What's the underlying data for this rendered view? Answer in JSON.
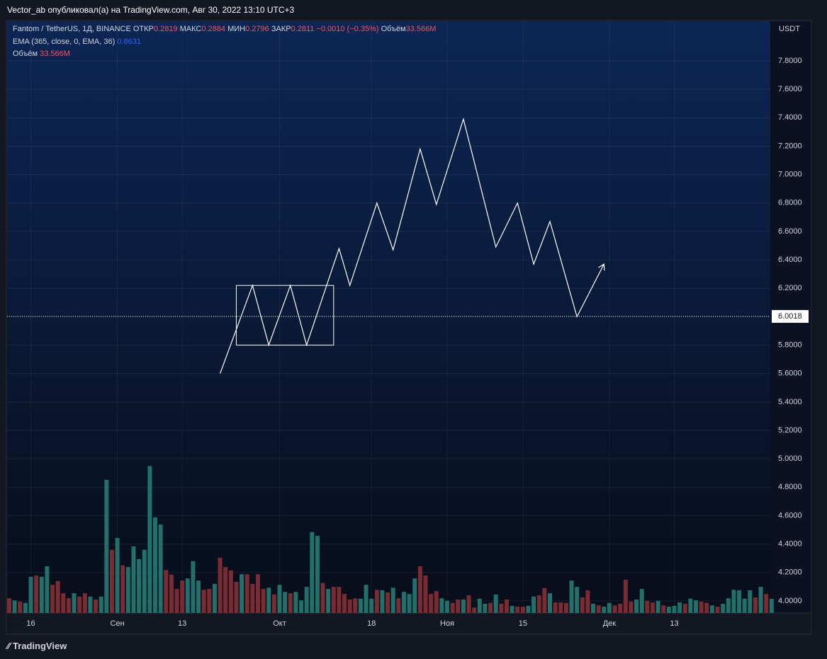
{
  "header": {
    "published": "Vector_ab опубликовал(а) на TradingView.com, Авг 30, 2022 13:10 UTC+3"
  },
  "legend": {
    "symbol": "Fantom / TetherUS, 1Д, BINANCE",
    "open_label": "ОТКР",
    "open": "0.2819",
    "high_label": "МАКС",
    "high": "0.2884",
    "low_label": "МИН",
    "low": "0.2796",
    "close_label": "ЗАКР",
    "close": "0.2811",
    "change": "−0.0010 (−0.35%)",
    "volume_label": "Объём",
    "volume": "33.566M",
    "ema_label": "EMA (365, close, 0, EMA, 36)",
    "ema": "0.8631",
    "volume_study": "Объём",
    "volume_study_value": "33.566M"
  },
  "footer": {
    "brand": "TradingView"
  },
  "chart_data": {
    "type": "bar",
    "currency": "USDT",
    "ylim": [
      3.915,
      8.079
    ],
    "yticks": [
      {
        "value": 4.0,
        "label": "4.0000"
      },
      {
        "value": 4.2,
        "label": "4.2000"
      },
      {
        "value": 4.4,
        "label": "4.4000"
      },
      {
        "value": 4.6,
        "label": "4.6000"
      },
      {
        "value": 4.8,
        "label": "4.8000"
      },
      {
        "value": 5.0,
        "label": "5.0000"
      },
      {
        "value": 5.2,
        "label": "5.2000"
      },
      {
        "value": 5.4,
        "label": "5.4000"
      },
      {
        "value": 5.6,
        "label": "5.6000"
      },
      {
        "value": 5.8,
        "label": "5.8000"
      },
      {
        "value": 6.0,
        "label": "6.0000"
      },
      {
        "value": 6.2,
        "label": "6.2000"
      },
      {
        "value": 6.4,
        "label": "6.4000"
      },
      {
        "value": 6.6,
        "label": "6.6000"
      },
      {
        "value": 6.8,
        "label": "6.8000"
      },
      {
        "value": 7.0,
        "label": "7.0000"
      },
      {
        "value": 7.2,
        "label": "7.2000"
      },
      {
        "value": 7.4,
        "label": "7.4000"
      },
      {
        "value": 7.6,
        "label": "7.6000"
      },
      {
        "value": 7.8,
        "label": "7.8000"
      }
    ],
    "grid": true,
    "categories": [
      null,
      null,
      null,
      null,
      "16",
      null,
      null,
      null,
      null,
      null,
      null,
      null,
      null,
      null,
      null,
      null,
      null,
      null,
      null,
      null,
      "Сен",
      null,
      null,
      null,
      null,
      null,
      null,
      null,
      null,
      null,
      null,
      null,
      "13",
      null,
      null,
      null,
      null,
      null,
      null,
      null,
      null,
      null,
      null,
      null,
      null,
      null,
      null,
      null,
      null,
      null,
      "Окт",
      null,
      null,
      null,
      null,
      null,
      null,
      null,
      null,
      null,
      null,
      null,
      null,
      null,
      null,
      null,
      null,
      "18",
      null,
      null,
      null,
      null,
      null,
      null,
      null,
      null,
      null,
      null,
      null,
      null,
      null,
      "Ноя",
      null,
      null,
      null,
      null,
      null,
      null,
      null,
      null,
      null,
      null,
      null,
      null,
      null,
      "15",
      null,
      null,
      null,
      null,
      null,
      null,
      null,
      null,
      null,
      null,
      null,
      null,
      null,
      null,
      null,
      "Дек",
      null,
      null,
      null,
      null,
      null,
      null,
      null,
      null,
      null,
      null,
      null,
      "13",
      null,
      null,
      null,
      null,
      null,
      null,
      null,
      null,
      null,
      null,
      null,
      null,
      null,
      null,
      null,
      null,
      null,
      null
    ],
    "volume": {
      "name": "Объём",
      "ylim": [
        0,
        500
      ],
      "values": [
        35,
        30,
        27,
        24,
        86,
        89,
        86,
        111,
        67,
        76,
        47,
        35,
        47,
        39,
        47,
        39,
        32,
        39,
        316,
        150,
        178,
        113,
        109,
        158,
        128,
        150,
        349,
        227,
        210,
        102,
        91,
        57,
        77,
        82,
        123,
        77,
        55,
        57,
        69,
        131,
        109,
        101,
        74,
        92,
        92,
        69,
        92,
        57,
        60,
        44,
        67,
        50,
        47,
        50,
        30,
        62,
        192,
        183,
        71,
        57,
        62,
        62,
        45,
        32,
        35,
        34,
        67,
        34,
        55,
        54,
        49,
        60,
        35,
        50,
        45,
        82,
        111,
        89,
        45,
        52,
        35,
        29,
        24,
        32,
        32,
        42,
        13,
        34,
        22,
        24,
        44,
        22,
        32,
        17,
        15,
        15,
        17,
        39,
        42,
        59,
        47,
        25,
        25,
        24,
        77,
        62,
        37,
        54,
        22,
        18,
        15,
        24,
        18,
        22,
        79,
        27,
        32,
        57,
        29,
        25,
        29,
        18,
        15,
        17,
        25,
        22,
        34,
        30,
        27,
        24,
        18,
        15,
        22,
        35,
        55,
        54,
        34,
        54,
        37,
        62,
        45,
        33.566
      ],
      "colors": [
        "#7b2c33",
        "#22706c",
        "#7b2c33",
        "#22706c",
        "#22706c",
        "#7b2c33",
        "#22706c",
        "#22706c",
        "#7b2c33",
        "#7b2c33",
        "#7b2c33",
        "#7b2c33",
        "#22706c",
        "#7b2c33",
        "#7b2c33",
        "#22706c",
        "#7b2c33",
        "#22706c",
        "#22706c",
        "#7b2c33",
        "#22706c",
        "#7b2c33",
        "#22706c",
        "#22706c",
        "#22706c",
        "#22706c",
        "#22706c",
        "#22706c",
        "#22706c",
        "#7b2c33",
        "#7b2c33",
        "#7b2c33",
        "#7b2c33",
        "#22706c",
        "#22706c",
        "#22706c",
        "#7b2c33",
        "#7b2c33",
        "#22706c",
        "#7b2c33",
        "#7b2c33",
        "#7b2c33",
        "#7b2c33",
        "#22706c",
        "#7b2c33",
        "#7b2c33",
        "#7b2c33",
        "#7b2c33",
        "#22706c",
        "#7b2c33",
        "#22706c",
        "#22706c",
        "#7b2c33",
        "#22706c",
        "#22706c",
        "#22706c",
        "#22706c",
        "#22706c",
        "#7b2c33",
        "#22706c",
        "#7b2c33",
        "#7b2c33",
        "#7b2c33",
        "#7b2c33",
        "#7b2c33",
        "#22706c",
        "#22706c",
        "#22706c",
        "#7b2c33",
        "#22706c",
        "#7b2c33",
        "#22706c",
        "#7b2c33",
        "#22706c",
        "#22706c",
        "#22706c",
        "#7b2c33",
        "#7b2c33",
        "#7b2c33",
        "#7b2c33",
        "#22706c",
        "#22706c",
        "#7b2c33",
        "#7b2c33",
        "#22706c",
        "#7b2c33",
        "#7b2c33",
        "#22706c",
        "#22706c",
        "#7b2c33",
        "#22706c",
        "#7b2c33",
        "#7b2c33",
        "#22706c",
        "#7b2c33",
        "#7b2c33",
        "#22706c",
        "#22706c",
        "#7b2c33",
        "#7b2c33",
        "#22706c",
        "#7b2c33",
        "#7b2c33",
        "#7b2c33",
        "#22706c",
        "#22706c",
        "#7b2c33",
        "#7b2c33",
        "#22706c",
        "#7b2c33",
        "#22706c",
        "#22706c",
        "#7b2c33",
        "#7b2c33",
        "#7b2c33",
        "#7b2c33",
        "#22706c",
        "#22706c",
        "#7b2c33",
        "#7b2c33",
        "#22706c",
        "#7b2c33",
        "#22706c",
        "#22706c",
        "#22706c",
        "#7b2c33",
        "#22706c",
        "#22706c",
        "#7b2c33",
        "#7b2c33",
        "#22706c",
        "#7b2c33",
        "#22706c",
        "#22706c",
        "#22706c",
        "#22706c",
        "#22706c",
        "#22706c",
        "#7b2c33",
        "#22706c",
        "#7b2c33",
        "#22706c"
      ]
    },
    "drawing": {
      "color": "#ffffff",
      "x": [
        39,
        45,
        48,
        52,
        55,
        61,
        63,
        68,
        71,
        76,
        79,
        84,
        90,
        94,
        97,
        100,
        105,
        110
      ],
      "values": [
        5.6,
        6.22,
        5.8,
        6.22,
        5.8,
        6.48,
        6.22,
        6.8,
        6.47,
        7.18,
        6.79,
        7.39,
        6.49,
        6.8,
        6.37,
        6.67,
        6.0,
        6.37
      ]
    },
    "rectangle": {
      "x": [
        42,
        60
      ],
      "values": [
        6.22,
        5.8
      ]
    },
    "price_line": {
      "value": 6.0018,
      "label": "6.0018"
    }
  }
}
